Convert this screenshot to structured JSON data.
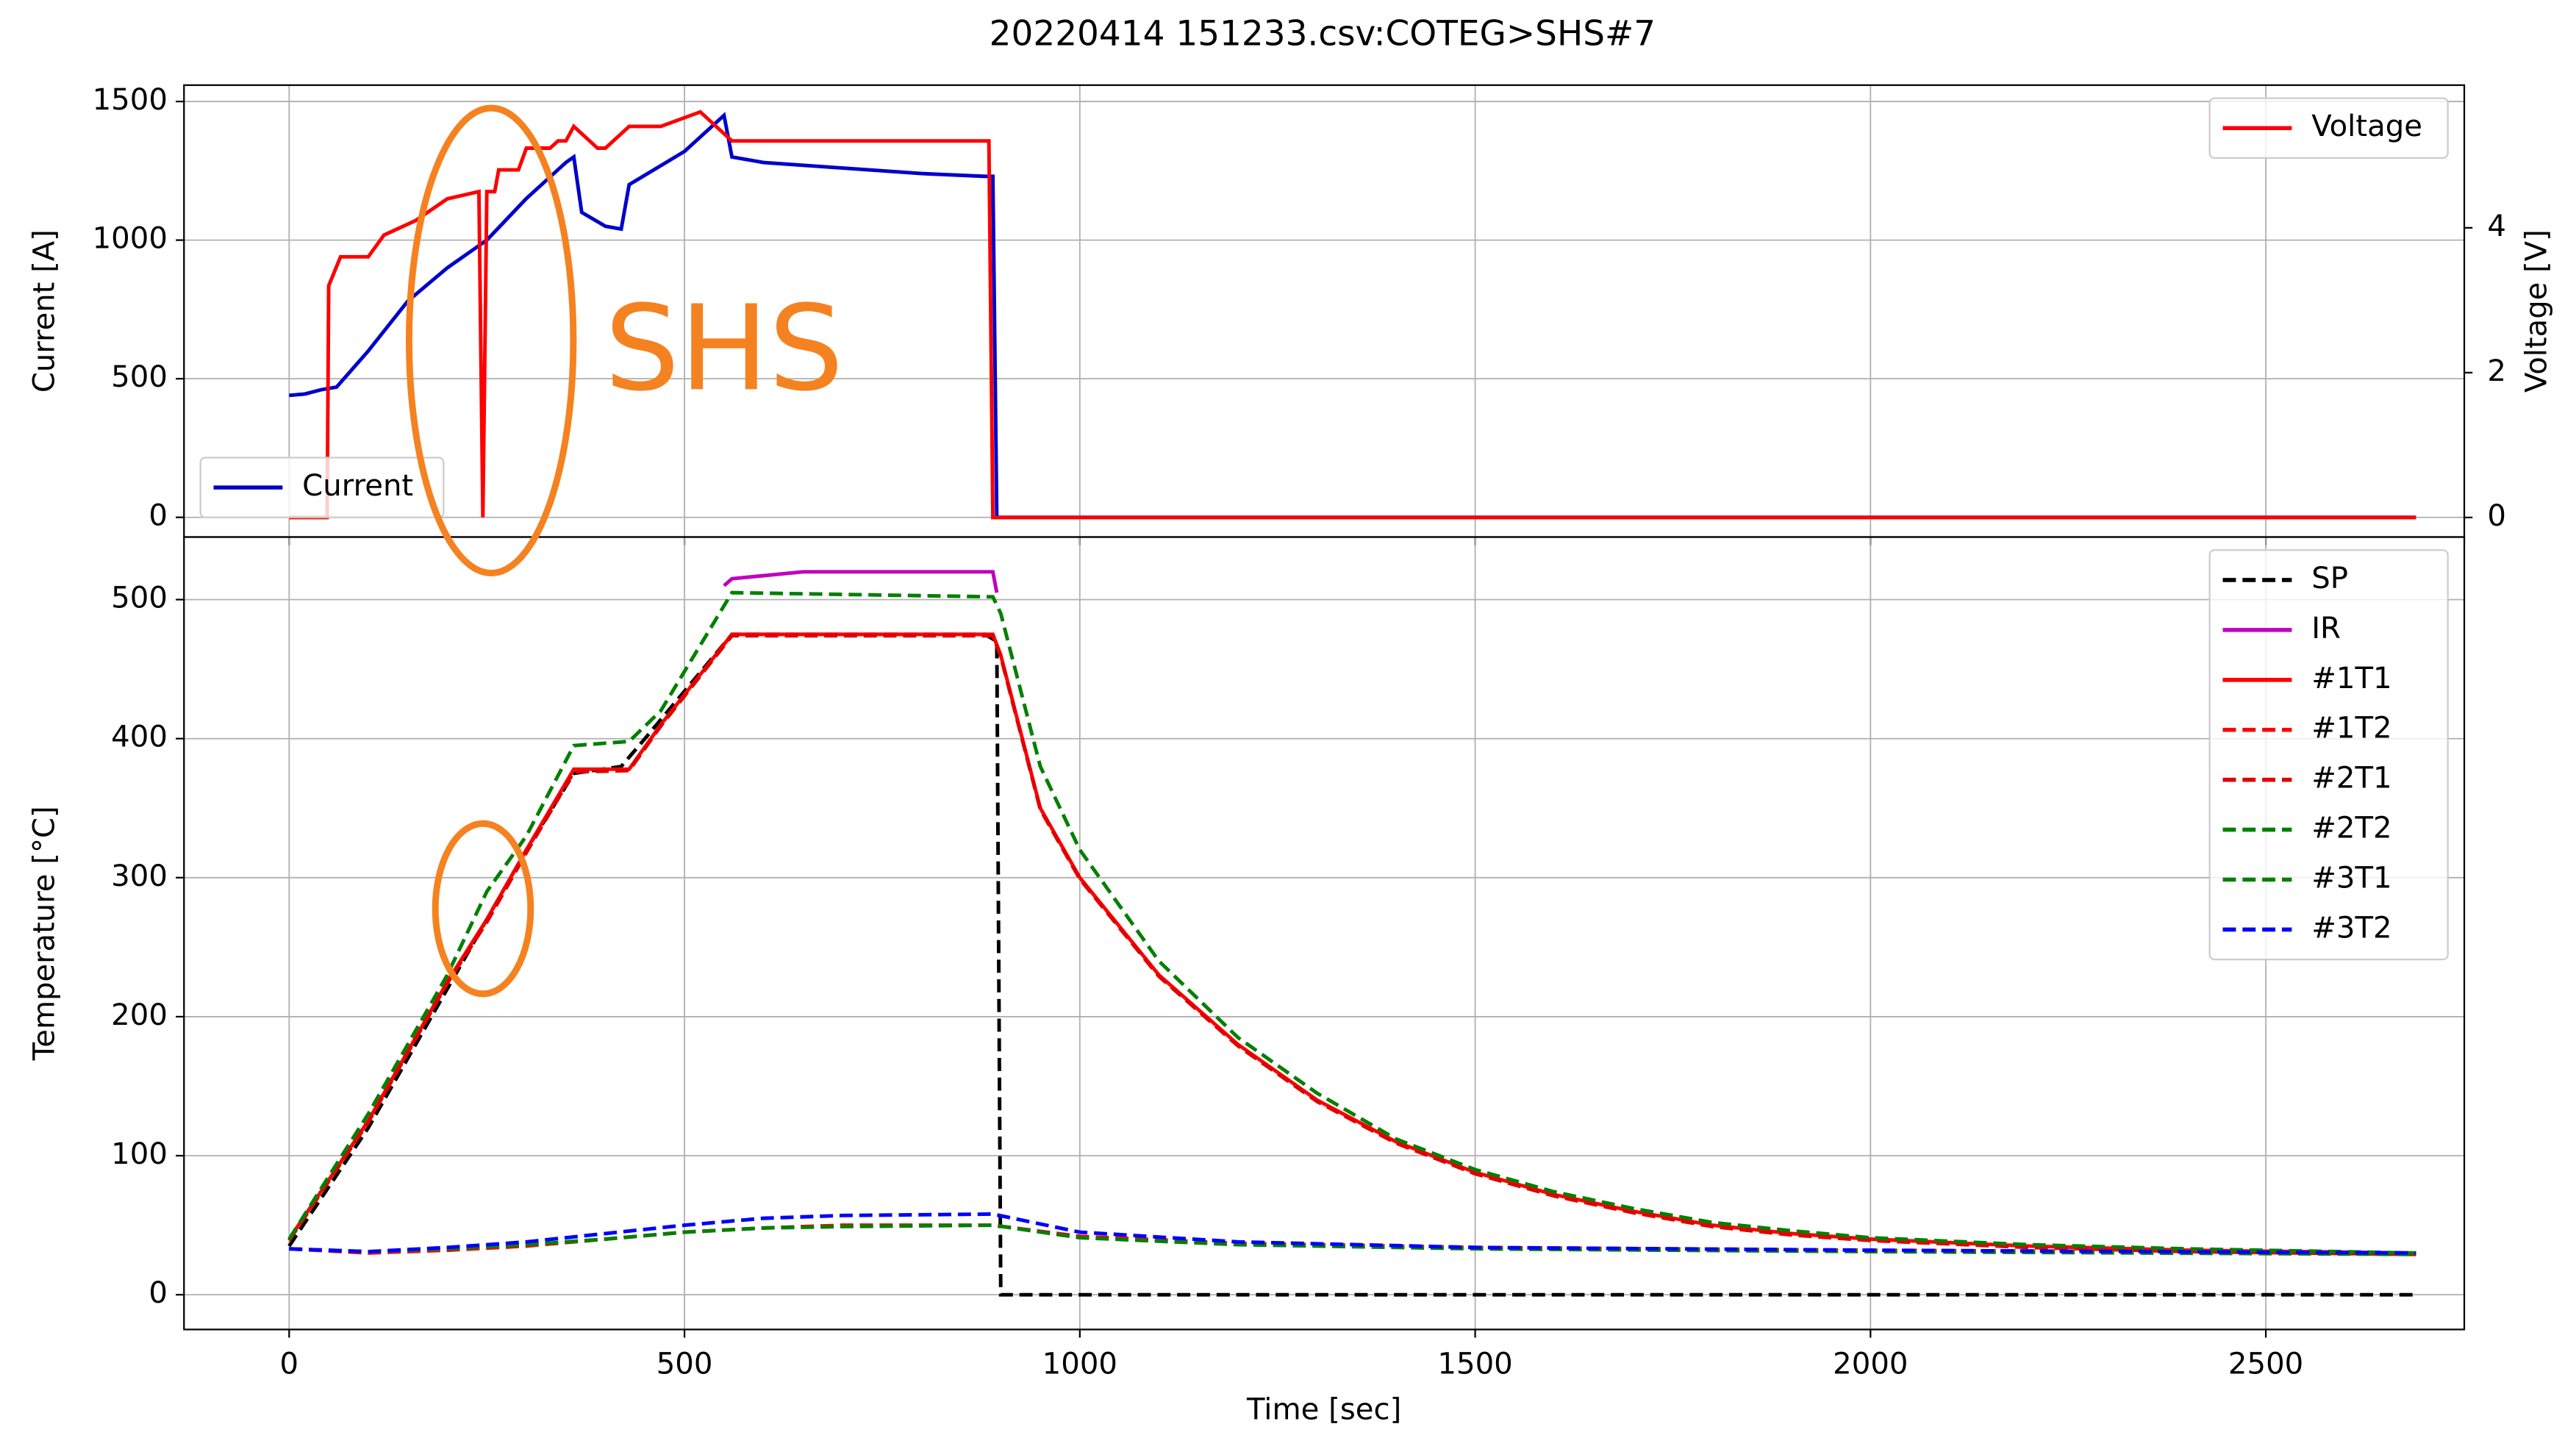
{
  "title": "20220414  151233.csv:COTEG>SHS#7",
  "chart_data": [
    {
      "type": "line",
      "ylabel": "Current [A]",
      "y2label": "Voltage [V]",
      "annotation": "SHS",
      "xlim": [
        -133,
        2751
      ],
      "xticks": [
        0,
        500,
        1000,
        1500,
        2000,
        2500
      ],
      "ylim": [
        -71,
        1559
      ],
      "yticks": [
        0,
        500,
        1000,
        1500
      ],
      "y2lim": [
        -0.27,
        5.97
      ],
      "y2ticks": [
        0,
        2,
        4
      ],
      "grid": true,
      "legend": "lower left",
      "legend2": "upper right",
      "series": [
        {
          "name": "Current",
          "color": "#0000cc",
          "linestyle": "solid",
          "axis": "y",
          "x": [
            0,
            20,
            40,
            60,
            100,
            150,
            200,
            250,
            300,
            350,
            360,
            370,
            400,
            420,
            430,
            500,
            550,
            560,
            600,
            700,
            800,
            880,
            890,
            895,
            2690
          ],
          "values": [
            440,
            445,
            460,
            470,
            600,
            780,
            900,
            1000,
            1150,
            1280,
            1300,
            1100,
            1050,
            1040,
            1200,
            1320,
            1450,
            1300,
            1280,
            1260,
            1240,
            1230,
            1230,
            0,
            0
          ]
        },
        {
          "name": "Voltage",
          "color": "#ff0000",
          "linestyle": "solid",
          "axis": "y2",
          "x": [
            0,
            48,
            50,
            65,
            100,
            120,
            160,
            200,
            240,
            245,
            250,
            260,
            265,
            290,
            300,
            330,
            340,
            350,
            360,
            390,
            400,
            430,
            470,
            520,
            560,
            880,
            885,
            890,
            2690
          ],
          "values": [
            0,
            0,
            3.2,
            3.6,
            3.6,
            3.9,
            4.1,
            4.4,
            4.5,
            0,
            4.5,
            4.5,
            4.8,
            4.8,
            5.1,
            5.1,
            5.2,
            5.2,
            5.4,
            5.1,
            5.1,
            5.4,
            5.4,
            5.6,
            5.2,
            5.2,
            5.2,
            0,
            0
          ]
        }
      ]
    },
    {
      "type": "line",
      "xlabel": "Time [sec]",
      "ylabel": "Temperature [°C]",
      "xlim": [
        -133,
        2751
      ],
      "xticks": [
        0,
        500,
        1000,
        1500,
        2000,
        2500
      ],
      "ylim": [
        -25,
        545
      ],
      "yticks": [
        0,
        100,
        200,
        300,
        400,
        500
      ],
      "grid": true,
      "legend": "upper right",
      "series": [
        {
          "name": "SP",
          "color": "#000000",
          "linestyle": "dashed",
          "x": [
            0,
            100,
            200,
            250,
            300,
            360,
            420,
            450,
            560,
            880,
            895,
            900,
            2690
          ],
          "values": [
            35,
            120,
            220,
            270,
            320,
            375,
            380,
            400,
            475,
            475,
            470,
            0,
            0
          ]
        },
        {
          "name": "IR",
          "color": "#bf00bf",
          "linestyle": "solid",
          "x": [
            550,
            560,
            650,
            890,
            895
          ],
          "values": [
            510,
            515,
            520,
            520,
            505
          ]
        },
        {
          "name": "#1T1",
          "color": "#ff0000",
          "linestyle": "solid",
          "x": [
            0,
            100,
            200,
            250,
            300,
            360,
            430,
            470,
            560,
            890,
            900,
            950,
            1000,
            1100,
            1200,
            1300,
            1400,
            1500,
            1600,
            1700,
            1800,
            1900,
            2000,
            2200,
            2400,
            2690
          ],
          "values": [
            40,
            125,
            225,
            270,
            320,
            378,
            378,
            410,
            475,
            475,
            460,
            350,
            300,
            230,
            180,
            140,
            110,
            88,
            72,
            60,
            50,
            44,
            40,
            35,
            32,
            30
          ]
        },
        {
          "name": "#1T2",
          "color": "#ff0000",
          "linestyle": "dashed",
          "x": [
            0,
            100,
            200,
            300,
            400,
            500,
            600,
            700,
            890,
            1000,
            1200,
            1500,
            2000,
            2690
          ],
          "values": [
            33,
            30,
            32,
            35,
            40,
            45,
            48,
            50,
            50,
            42,
            37,
            34,
            32,
            30
          ]
        },
        {
          "name": "#2T1",
          "color": "#e00000",
          "linestyle": "dashed",
          "x": [
            0,
            100,
            200,
            250,
            300,
            360,
            430,
            470,
            560,
            890,
            900,
            950,
            1000,
            1100,
            1200,
            1300,
            1400,
            1500,
            1600,
            1700,
            1800,
            1900,
            2000,
            2200,
            2400,
            2690
          ],
          "values": [
            39,
            124,
            224,
            268,
            318,
            376,
            377,
            409,
            474,
            474,
            459,
            349,
            299,
            229,
            179,
            139,
            109,
            87,
            71,
            59,
            49,
            43,
            39,
            34,
            31,
            29
          ]
        },
        {
          "name": "#2T2",
          "color": "#008000",
          "linestyle": "dashed",
          "x": [
            0,
            100,
            200,
            250,
            300,
            360,
            430,
            470,
            560,
            890,
            900,
            950,
            1000,
            1100,
            1200,
            1300,
            1400,
            1500,
            1600,
            1700,
            1800,
            1900,
            2000,
            2200,
            2400,
            2690
          ],
          "values": [
            40,
            130,
            230,
            290,
            330,
            395,
            398,
            420,
            505,
            502,
            490,
            380,
            320,
            240,
            185,
            145,
            112,
            90,
            74,
            62,
            52,
            46,
            41,
            36,
            33,
            30
          ]
        },
        {
          "name": "#3T1",
          "color": "#008000",
          "linestyle": "dashed",
          "x": [
            0,
            100,
            200,
            300,
            400,
            500,
            600,
            700,
            890,
            1000,
            1200,
            1500,
            2000,
            2690
          ],
          "values": [
            33,
            31,
            33,
            36,
            40,
            45,
            48,
            49,
            50,
            41,
            36,
            33,
            31,
            29
          ]
        },
        {
          "name": "#3T2",
          "color": "#0000ff",
          "linestyle": "dashed",
          "x": [
            0,
            100,
            200,
            300,
            400,
            500,
            600,
            700,
            890,
            1000,
            1200,
            1500,
            2000,
            2690
          ],
          "values": [
            33,
            31,
            34,
            38,
            44,
            50,
            55,
            57,
            58,
            45,
            38,
            34,
            32,
            30
          ]
        }
      ]
    }
  ]
}
